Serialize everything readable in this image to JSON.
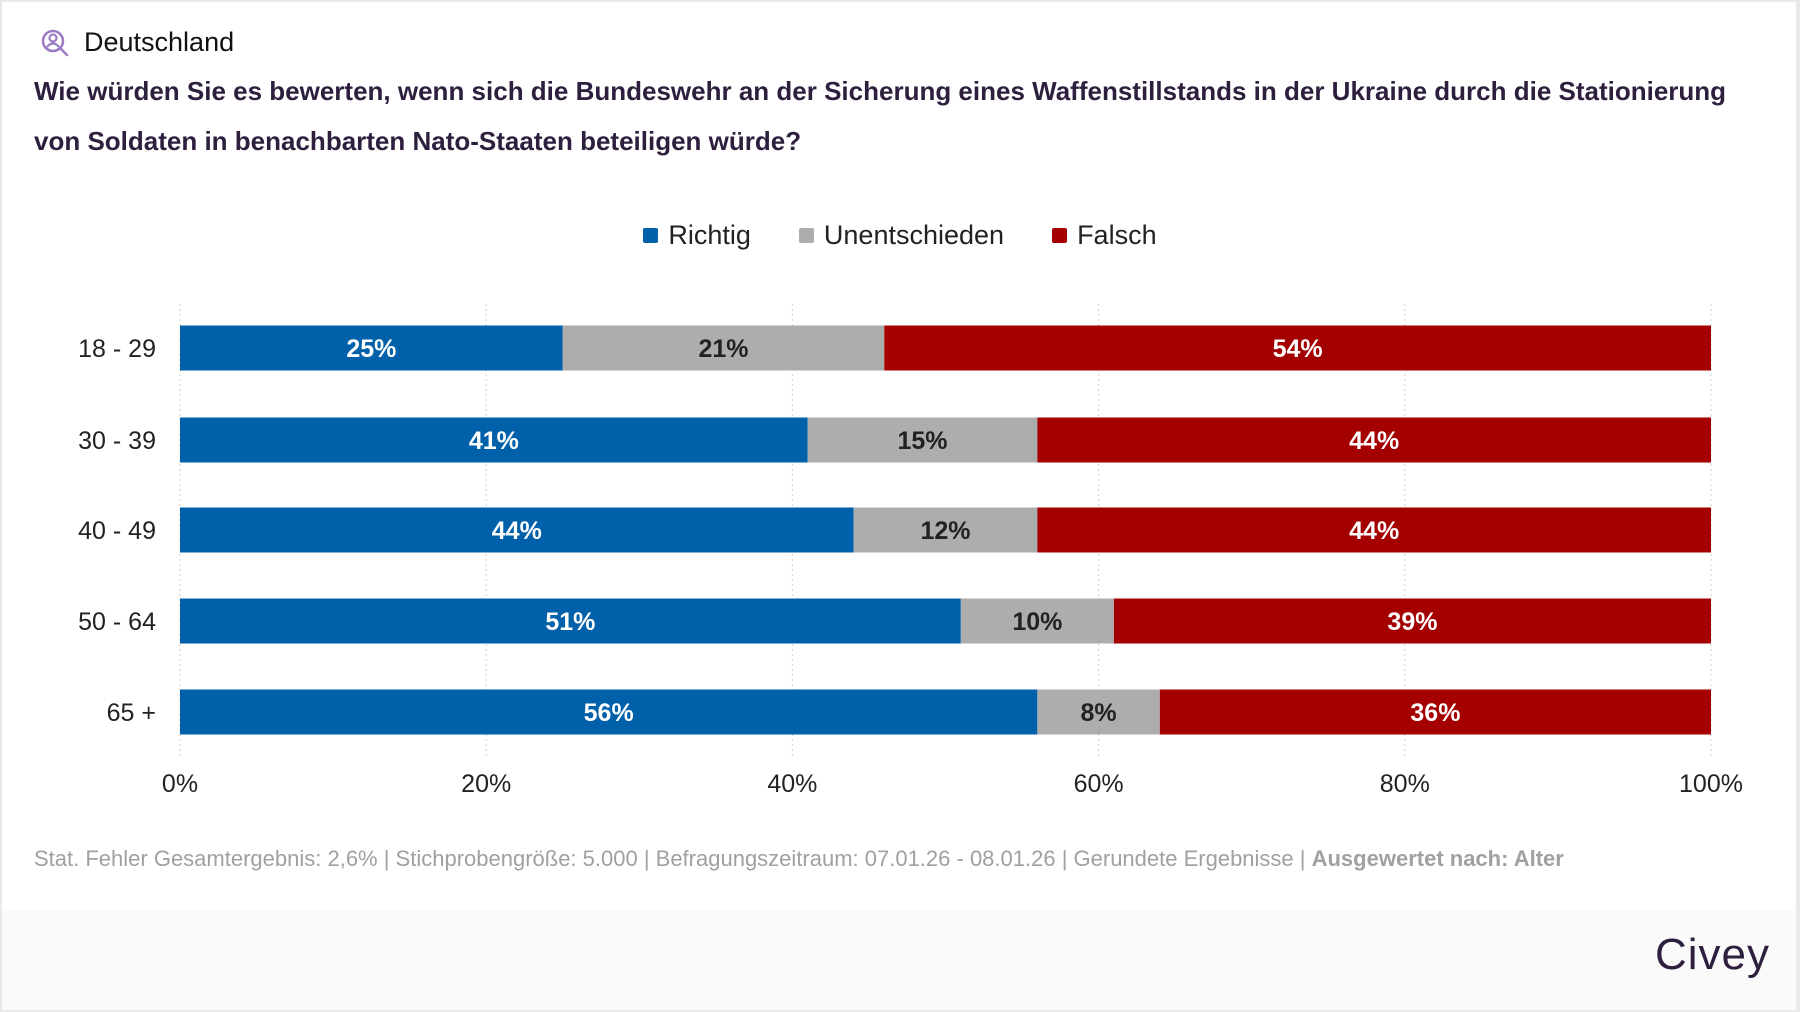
{
  "header": {
    "region": "Deutschland",
    "region_icon": "person-search-icon"
  },
  "title": "Wie würden Sie es bewerten, wenn sich die Bundeswehr an der Sicherung eines Waffenstillstands in der Ukraine durch die Stationierung von Soldaten in benachbarten Nato-Staaten beteiligen würde?",
  "chart_data": {
    "type": "bar",
    "orientation": "horizontal",
    "stacked": true,
    "categories": [
      "18 - 29",
      "30 - 39",
      "40 - 49",
      "50 - 64",
      "65 +"
    ],
    "series": [
      {
        "name": "Richtig",
        "color": "#0061aa",
        "values": [
          25,
          41,
          44,
          51,
          56
        ]
      },
      {
        "name": "Unentschieden",
        "color": "#adadad",
        "values": [
          21,
          15,
          12,
          10,
          8
        ]
      },
      {
        "name": "Falsch",
        "color": "#a50000",
        "values": [
          54,
          44,
          44,
          39,
          36
        ]
      }
    ],
    "xlim": [
      0,
      100
    ],
    "x_ticks": [
      "0%",
      "20%",
      "40%",
      "60%",
      "80%",
      "100%"
    ],
    "grid": "vertical dotted",
    "legend_position": "top-center"
  },
  "footer": {
    "note": "Stat. Fehler Gesamtergebnis: 2,6% | Stichprobengröße: 5.000 | Befragungszeitraum: 07.01.26 - 08.01.26 | Gerundete Ergebnisse | ",
    "note_bold": "Ausgewertet nach: Alter",
    "logo": "Civey"
  }
}
